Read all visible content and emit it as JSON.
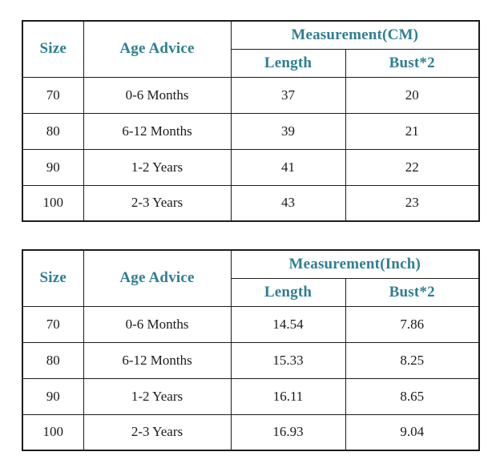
{
  "colors": {
    "accent": "#2E7F92",
    "text": "#1A1A1A",
    "border": "#1C1C1C",
    "background": "#FFFFFF"
  },
  "tables": [
    {
      "id": "cm",
      "headers": {
        "size": "Size",
        "age_advice": "Age Advice",
        "measurement": "Measurement(CM)",
        "length": "Length",
        "bust": "Bust*2"
      },
      "rows": [
        [
          "70",
          "0-6 Months",
          "37",
          "20"
        ],
        [
          "80",
          "6-12 Months",
          "39",
          "21"
        ],
        [
          "90",
          "1-2 Years",
          "41",
          "22"
        ],
        [
          "100",
          "2-3 Years",
          "43",
          "23"
        ]
      ]
    },
    {
      "id": "inch",
      "headers": {
        "size": "Size",
        "age_advice": "Age Advice",
        "measurement": "Measurement(Inch)",
        "length": "Length",
        "bust": "Bust*2"
      },
      "rows": [
        [
          "70",
          "0-6 Months",
          "14.54",
          "7.86"
        ],
        [
          "80",
          "6-12 Months",
          "15.33",
          "8.25"
        ],
        [
          "90",
          "1-2 Years",
          "16.11",
          "8.65"
        ],
        [
          "100",
          "2-3 Years",
          "16.93",
          "9.04"
        ]
      ]
    }
  ]
}
